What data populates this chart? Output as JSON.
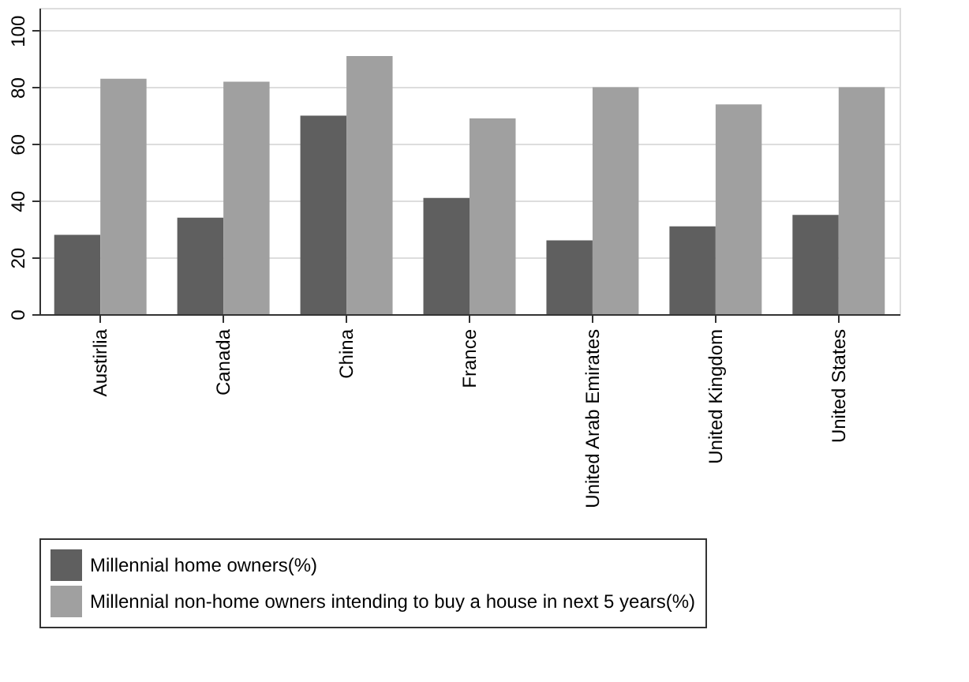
{
  "chart_data": {
    "type": "bar",
    "categories": [
      "Austirlia",
      "Canada",
      "China",
      "France",
      "United Arab Emirates",
      "United Kingdom",
      "United States"
    ],
    "series": [
      {
        "name": "Millennial home owners(%)",
        "color": "#5f5f5f",
        "values": [
          28,
          34,
          70,
          41,
          26,
          31,
          35
        ]
      },
      {
        "name": "Millennial non-home owners intending to buy a house in next 5 years(%)",
        "color": "#a0a0a0",
        "values": [
          83,
          82,
          91,
          69,
          80,
          74,
          80
        ]
      }
    ],
    "ylim": [
      0,
      108
    ],
    "yticks": [
      0,
      20,
      40,
      60,
      80,
      100
    ],
    "grid": "y",
    "legend": "bottom"
  }
}
